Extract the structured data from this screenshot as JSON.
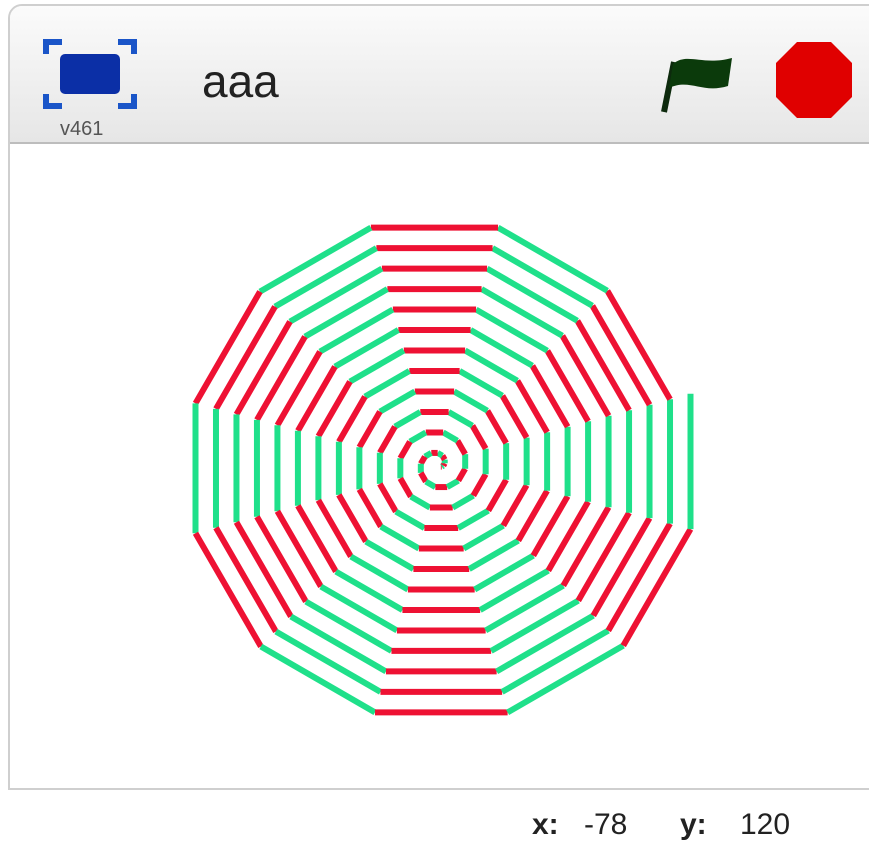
{
  "header": {
    "version": "v461",
    "title": "aaa"
  },
  "footer": {
    "x_label": "x:",
    "x_value": "-78",
    "y_label": "y:",
    "y_value": "120"
  }
}
